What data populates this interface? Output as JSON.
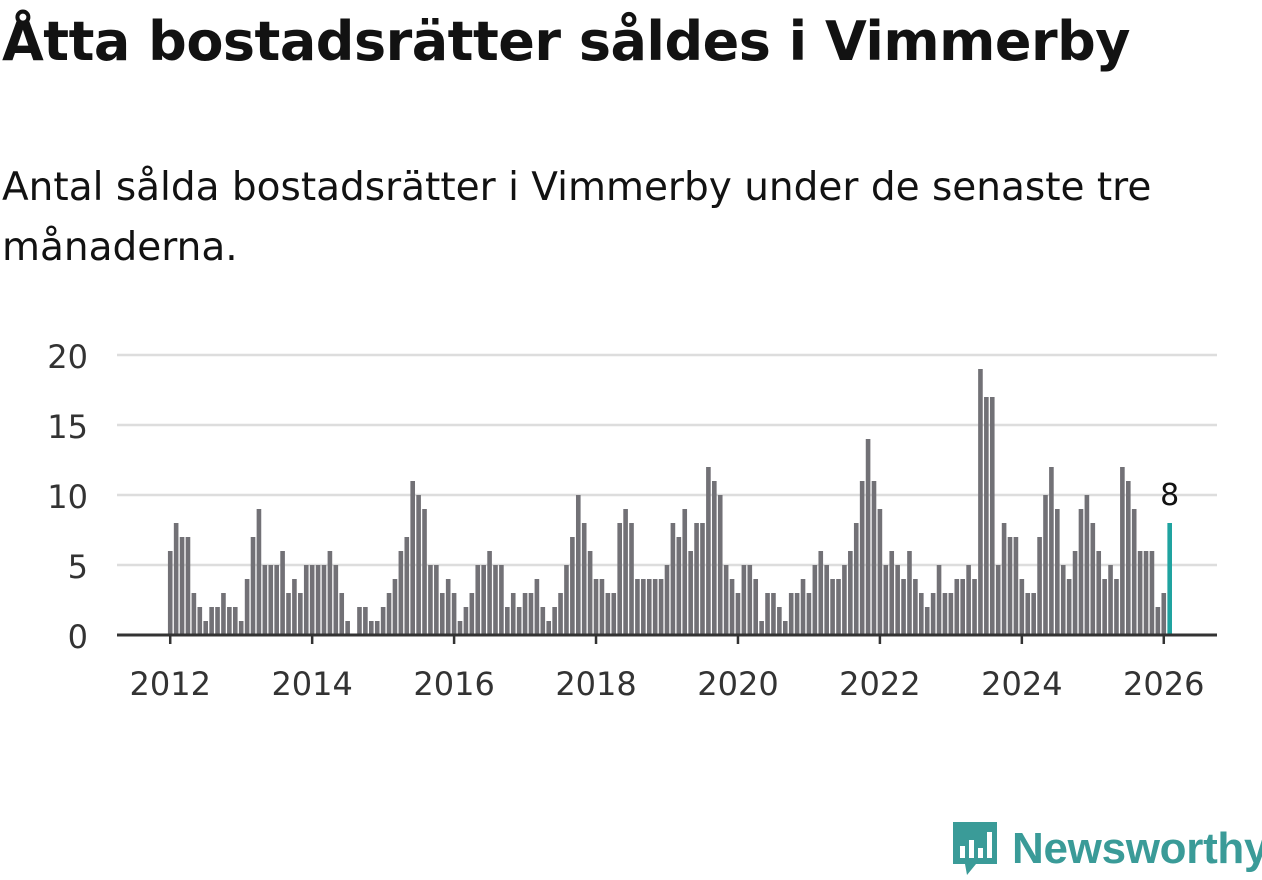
{
  "title": "Åtta bostadsrätter såldes i Vimmerby",
  "subtitle": "Antal sålda bostadsrätter i Vimmerby under de senaste tre månaderna.",
  "brand": {
    "name": "Newsworthy",
    "icon": "newsworthy-logo-icon",
    "color": "#3a9b98"
  },
  "colors": {
    "bar": "#727176",
    "highlight": "#1fa3a0",
    "grid": "#dddddd",
    "axis": "#333333"
  },
  "chart_data": {
    "type": "bar",
    "title": "Åtta bostadsrätter såldes i Vimmerby",
    "xlabel": "",
    "ylabel": "",
    "x_start": "2012-01",
    "x_range": [
      "2011-04",
      "2026-10"
    ],
    "ylim": [
      0,
      20
    ],
    "yticks": [
      0,
      5,
      10,
      15,
      20
    ],
    "xticks": [
      "2012",
      "2014",
      "2016",
      "2018",
      "2020",
      "2022",
      "2024",
      "2026"
    ],
    "grid": true,
    "values": [
      6,
      8,
      7,
      7,
      3,
      2,
      1,
      2,
      2,
      3,
      2,
      2,
      1,
      4,
      7,
      9,
      5,
      5,
      5,
      6,
      3,
      4,
      3,
      5,
      5,
      5,
      5,
      6,
      5,
      3,
      1,
      0,
      2,
      2,
      1,
      1,
      2,
      3,
      4,
      6,
      7,
      11,
      10,
      9,
      5,
      5,
      3,
      4,
      3,
      1,
      2,
      3,
      5,
      5,
      6,
      5,
      5,
      2,
      3,
      2,
      3,
      3,
      4,
      2,
      1,
      2,
      3,
      5,
      7,
      10,
      8,
      6,
      4,
      4,
      3,
      3,
      8,
      9,
      8,
      4,
      4,
      4,
      4,
      4,
      5,
      8,
      7,
      9,
      6,
      8,
      8,
      12,
      11,
      10,
      5,
      4,
      3,
      5,
      5,
      4,
      1,
      3,
      3,
      2,
      1,
      3,
      3,
      4,
      3,
      5,
      6,
      5,
      4,
      4,
      5,
      6,
      8,
      11,
      14,
      11,
      9,
      5,
      6,
      5,
      4,
      6,
      4,
      3,
      2,
      3,
      5,
      3,
      3,
      4,
      4,
      5,
      4,
      19,
      17,
      17,
      5,
      8,
      7,
      7,
      4,
      3,
      3,
      7,
      10,
      12,
      9,
      5,
      4,
      6,
      9,
      10,
      8,
      6,
      4,
      5,
      4,
      12,
      11,
      9,
      6,
      6,
      6,
      2,
      3,
      8
    ],
    "highlight": {
      "index": 169,
      "label": "8"
    }
  }
}
